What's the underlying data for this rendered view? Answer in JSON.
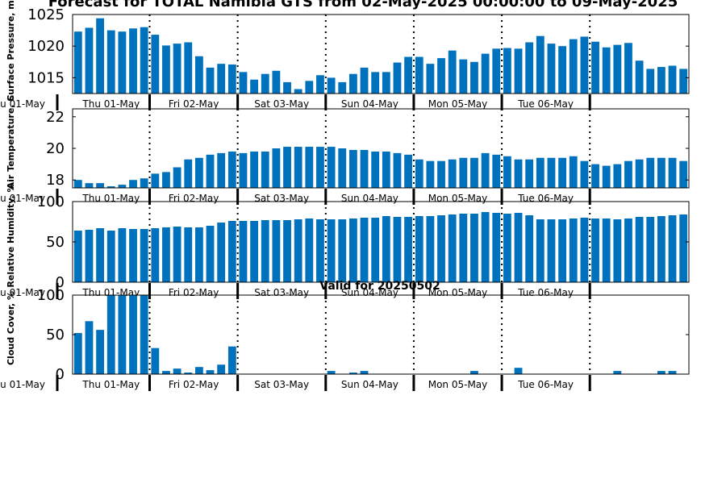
{
  "title": "Forecast for TOTAL Namibia GTS from 02-May-2025 00:00:00 to 09-May-2025",
  "bar_color": "#0072bd",
  "day_labels": [
    "Thu 01-May",
    "Fri 02-May",
    "Sat 03-May",
    "Sun 04-May",
    "Mon 05-May",
    "Tue 06-May"
  ],
  "chart_data": [
    {
      "type": "bar",
      "ylabel": "Surface Pressure, mb",
      "ylim": [
        1012.5,
        1025
      ],
      "yticks": [
        1015,
        1020,
        1025
      ],
      "values": [
        1022.3,
        1022.9,
        1024.4,
        1022.5,
        1022.3,
        1022.8,
        1023.0,
        1021.8,
        1020.1,
        1020.4,
        1020.6,
        1018.4,
        1016.6,
        1017.2,
        1017.1,
        1015.9,
        1014.7,
        1015.6,
        1016.1,
        1014.3,
        1013.2,
        1014.5,
        1015.4,
        1015.0,
        1014.3,
        1015.6,
        1016.6,
        1015.9,
        1015.9,
        1017.4,
        1018.3,
        1018.3,
        1017.2,
        1018.1,
        1019.3,
        1017.9,
        1017.5,
        1018.8,
        1019.6,
        1019.7,
        1019.6,
        1020.6,
        1021.6,
        1020.4,
        1020.0,
        1021.1,
        1021.5,
        1020.7,
        1019.8,
        1020.2,
        1020.5,
        1017.7,
        1016.4,
        1016.7,
        1016.9,
        1016.4
      ]
    },
    {
      "type": "bar",
      "ylabel": "Air Temperature, C",
      "ylim": [
        17.5,
        22.5
      ],
      "yticks": [
        18,
        20,
        22
      ],
      "values": [
        18.0,
        17.8,
        17.8,
        17.6,
        17.7,
        18.0,
        18.1,
        18.4,
        18.5,
        18.8,
        19.3,
        19.4,
        19.6,
        19.7,
        19.8,
        19.7,
        19.8,
        19.8,
        20.0,
        20.1,
        20.1,
        20.1,
        20.1,
        20.1,
        20.0,
        19.9,
        19.9,
        19.8,
        19.8,
        19.7,
        19.6,
        19.3,
        19.2,
        19.2,
        19.3,
        19.4,
        19.4,
        19.7,
        19.6,
        19.5,
        19.3,
        19.3,
        19.4,
        19.4,
        19.4,
        19.5,
        19.2,
        19.0,
        18.9,
        19.0,
        19.2,
        19.3,
        19.4,
        19.4,
        19.4,
        19.2
      ]
    },
    {
      "type": "bar",
      "ylabel": "Relative Humidity, %",
      "ylim": [
        0,
        100
      ],
      "yticks": [
        0,
        50,
        100
      ],
      "values": [
        64,
        65,
        67,
        64,
        67,
        66,
        66,
        67,
        68,
        69,
        68,
        68,
        70,
        74,
        76,
        76,
        76,
        77,
        77,
        77,
        78,
        79,
        78,
        78,
        78,
        79,
        80,
        80,
        82,
        81,
        81,
        82,
        82,
        83,
        84,
        85,
        85,
        87,
        86,
        85,
        86,
        83,
        78,
        78,
        78,
        79,
        80,
        79,
        79,
        78,
        79,
        81,
        81,
        82,
        83,
        84
      ]
    },
    {
      "type": "bar",
      "title": "Valid for 20250502",
      "ylabel": "Cloud Cover, %",
      "ylim": [
        0,
        100
      ],
      "yticks": [
        0,
        50,
        100
      ],
      "values": [
        52,
        67,
        56,
        100,
        100,
        100,
        100,
        33,
        4,
        7,
        2,
        9,
        5,
        12,
        35,
        0,
        0,
        0,
        0,
        0,
        0,
        0,
        0,
        4,
        0,
        2,
        4,
        0,
        0,
        0,
        0,
        0,
        0,
        0,
        0,
        0,
        4,
        0,
        0,
        0,
        8,
        0,
        0,
        0,
        0,
        0,
        0,
        0,
        0,
        4,
        0,
        0,
        0,
        4,
        4,
        0
      ]
    }
  ]
}
